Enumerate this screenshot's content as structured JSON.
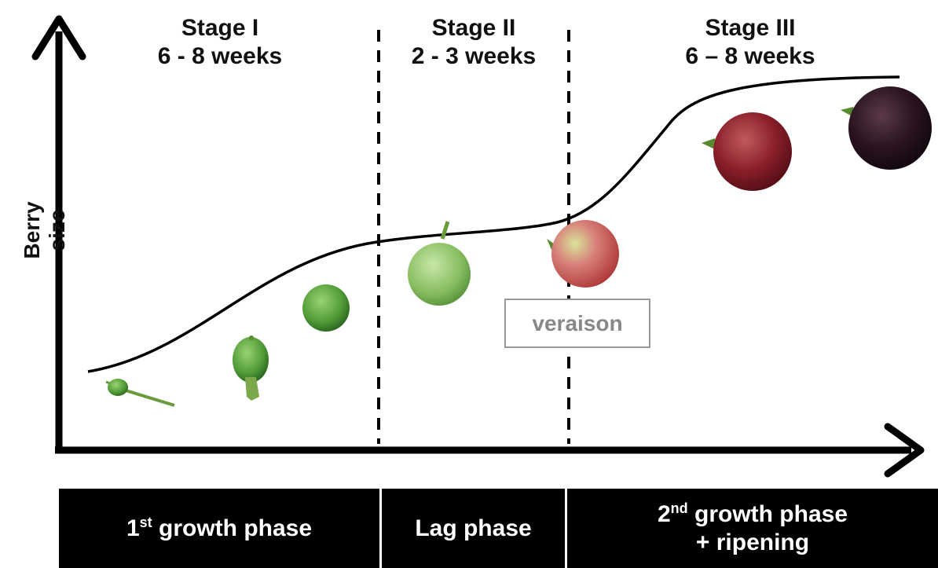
{
  "axes": {
    "y_label": "Berry size"
  },
  "stages": [
    {
      "name": "Stage I",
      "duration": "6 - 8 weeks"
    },
    {
      "name": "Stage II",
      "duration": "2 - 3 weeks"
    },
    {
      "name": "Stage III",
      "duration": "6 – 8 weeks"
    }
  ],
  "annotation": {
    "veraison": "veraison"
  },
  "phases": [
    {
      "pre": "1",
      "sup": "st",
      "post": " growth phase",
      "line2": ""
    },
    {
      "pre": "Lag phase",
      "sup": "",
      "post": "",
      "line2": ""
    },
    {
      "pre": "2",
      "sup": "nd",
      "post": " growth phase",
      "line2": "+ ripening"
    }
  ],
  "colors": {
    "phase_bar": "#000000",
    "berry_green": "#6fb04a",
    "berry_pale_green": "#9fce7a",
    "berry_red": "#8c1f2a",
    "berry_dark": "#241018",
    "veraison_border": "#999999"
  }
}
